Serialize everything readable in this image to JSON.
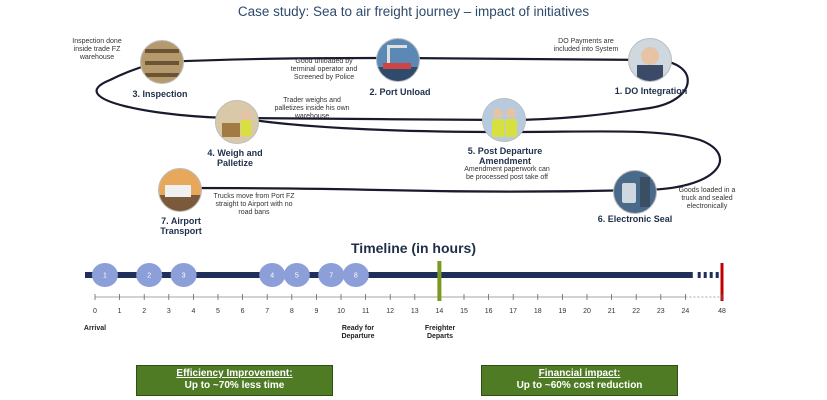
{
  "title": "Case study: Sea to air freight journey – impact of initiatives",
  "stages": {
    "inspection": {
      "label": "3. Inspection",
      "note": "Inspection done inside trade FZ warehouse"
    },
    "port_unload": {
      "label": "2. Port Unload",
      "note": "Good unloaded by terminal operator and Screened by Police"
    },
    "do_integration": {
      "label": "1. DO Integration",
      "note": "DO Payments are included into System"
    },
    "weigh": {
      "label": "4. Weigh and Palletize",
      "note": "Trader weighs and palletizes inside his own warehouse"
    },
    "amendment": {
      "label": "5. Post Departure Amendment",
      "note": "Amendment paperwork can be processed post take off"
    },
    "seal": {
      "label": "6. Electronic Seal",
      "note": "Goods loaded in a truck and sealed electronically"
    },
    "airport": {
      "label": "7. Airport Transport",
      "note": "Trucks move from Port FZ straight to Airport with no road bans"
    }
  },
  "timeline": {
    "title": "Timeline (in hours)",
    "ticks": [
      "0",
      "1",
      "2",
      "3",
      "4",
      "5",
      "6",
      "7",
      "8",
      "9",
      "10",
      "11",
      "12",
      "13",
      "14",
      "15",
      "16",
      "17",
      "18",
      "19",
      "20",
      "21",
      "22",
      "23",
      "24"
    ],
    "end_tick": "48",
    "markers": [
      {
        "label": "1",
        "hour": 0.2
      },
      {
        "label": "2",
        "hour": 2.0
      },
      {
        "label": "3",
        "hour": 3.4
      },
      {
        "label": "4",
        "hour": 7.0
      },
      {
        "label": "5",
        "hour": 8.0
      },
      {
        "label": "7",
        "hour": 9.4
      },
      {
        "label": "8",
        "hour": 10.4
      }
    ],
    "milestones": {
      "arrival": "Arrival",
      "ready": "Ready for Departure",
      "freighter": "Freighter Departs"
    },
    "freighter_hour": 14,
    "colors": {
      "bar": "#1f2f5a",
      "marker": "#8d9fd8",
      "freighter": "#7a9a1f",
      "end": "#c00000"
    }
  },
  "impact": {
    "efficiency": {
      "heading": "Efficiency Improvement:",
      "value": "Up to ~70% less time"
    },
    "financial": {
      "heading": "Financial impact:",
      "value": "Up to ~60% cost reduction"
    }
  }
}
